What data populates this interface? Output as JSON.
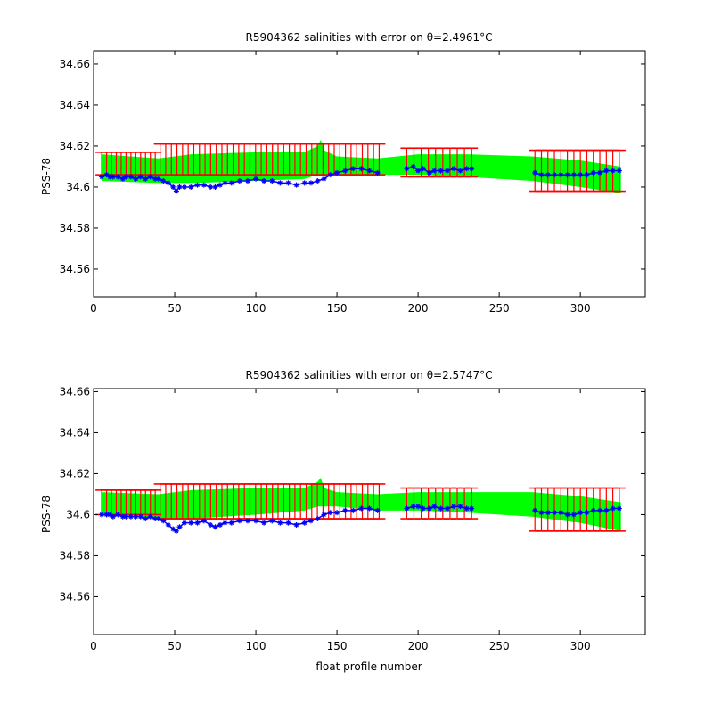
{
  "figure": {
    "xlabel": "float profile number"
  },
  "colors": {
    "mapped_band": "#00ff00",
    "error_bars": "#ff0000",
    "float_salinity": "#0000ff",
    "axes": "#000000"
  },
  "chart_data": [
    {
      "type": "line",
      "title": "R5904362 salinities with error on θ=2.4961°C",
      "ylabel": "PSS-78",
      "xlim": [
        0,
        340
      ],
      "ylim": [
        34.5465,
        34.6665
      ],
      "xticks": [
        "0",
        "50",
        "100",
        "150",
        "200",
        "250",
        "300"
      ],
      "yticks": [
        "34.56",
        "34.58",
        "34.6",
        "34.62",
        "34.64",
        "34.66"
      ],
      "bands": [
        {
          "x": [
            5,
            40,
            60,
            100,
            130,
            138,
            140,
            142,
            150,
            175,
            200,
            230,
            270,
            300,
            325
          ],
          "lower": [
            34.603,
            34.602,
            34.602,
            34.603,
            34.604,
            34.606,
            34.606,
            34.606,
            34.606,
            34.606,
            34.606,
            34.605,
            34.603,
            34.6,
            34.597
          ],
          "upper": [
            34.616,
            34.614,
            34.616,
            34.617,
            34.617,
            34.62,
            34.623,
            34.618,
            34.615,
            34.614,
            34.616,
            34.616,
            34.615,
            34.613,
            34.61
          ]
        }
      ],
      "series": [
        {
          "segments": [
            {
              "x": [
                5,
                8,
                10,
                12,
                15,
                18,
                20,
                23,
                26,
                29,
                32,
                35,
                38
              ],
              "y": [
                34.605,
                34.606,
                34.605,
                34.605,
                34.605,
                34.604,
                34.605,
                34.605,
                34.604,
                34.605,
                34.604,
                34.605,
                34.604
              ]
            },
            {
              "x": [
                40,
                43,
                46,
                49,
                51,
                53,
                56,
                60,
                64,
                68,
                72,
                75,
                78,
                81,
                85,
                90,
                95,
                100,
                105,
                110,
                115,
                120,
                125,
                130,
                134,
                138,
                142,
                146,
                150,
                155,
                160,
                165,
                170,
                175
              ],
              "y": [
                34.604,
                34.603,
                34.602,
                34.6,
                34.598,
                34.6,
                34.6,
                34.6,
                34.601,
                34.601,
                34.6,
                34.6,
                34.601,
                34.602,
                34.602,
                34.603,
                34.603,
                34.604,
                34.603,
                34.603,
                34.602,
                34.602,
                34.601,
                34.602,
                34.602,
                34.603,
                34.604,
                34.606,
                34.607,
                34.608,
                34.609,
                34.609,
                34.608,
                34.607
              ]
            },
            {
              "x": [
                193,
                197,
                200,
                203,
                207,
                210,
                214,
                218,
                222,
                226,
                230,
                233
              ],
              "y": [
                34.609,
                34.61,
                34.608,
                34.609,
                34.607,
                34.608,
                34.608,
                34.608,
                34.609,
                34.608,
                34.609,
                34.609
              ]
            },
            {
              "x": [
                272,
                276,
                280,
                284,
                288,
                292,
                296,
                300,
                304,
                308,
                312,
                316,
                320,
                324
              ],
              "y": [
                34.607,
                34.606,
                34.606,
                34.606,
                34.606,
                34.606,
                34.606,
                34.606,
                34.606,
                34.607,
                34.607,
                34.608,
                34.608,
                34.608
              ]
            }
          ]
        }
      ],
      "error_bars": [
        {
          "x_range": [
            5,
            38
          ],
          "count": 12,
          "low": 34.606,
          "high": 34.617
        },
        {
          "x_range": [
            41,
            176
          ],
          "count": 40,
          "low": 34.606,
          "high": 34.621
        },
        {
          "x_range": [
            193,
            233
          ],
          "count": 10,
          "low": 34.605,
          "high": 34.619
        },
        {
          "x_range": [
            272,
            324
          ],
          "count": 14,
          "low": 34.598,
          "high": 34.618
        }
      ]
    },
    {
      "type": "line",
      "title": "R5904362 salinities with error on θ=2.5747°C",
      "ylabel": "PSS-78",
      "xlim": [
        0,
        340
      ],
      "ylim": [
        34.5415,
        34.6615
      ],
      "xticks": [
        "0",
        "50",
        "100",
        "150",
        "200",
        "250",
        "300"
      ],
      "yticks": [
        "34.56",
        "34.58",
        "34.6",
        "34.62",
        "34.64",
        "34.66"
      ],
      "bands": [
        {
          "x": [
            5,
            40,
            60,
            100,
            130,
            138,
            140,
            142,
            150,
            175,
            200,
            230,
            270,
            300,
            325
          ],
          "lower": [
            34.6,
            34.598,
            34.598,
            34.6,
            34.602,
            34.604,
            34.604,
            34.604,
            34.604,
            34.602,
            34.602,
            34.601,
            34.599,
            34.596,
            34.592
          ],
          "upper": [
            34.611,
            34.61,
            34.612,
            34.613,
            34.613,
            34.616,
            34.618,
            34.613,
            34.611,
            34.61,
            34.611,
            34.611,
            34.611,
            34.609,
            34.606
          ]
        }
      ],
      "series": [
        {
          "segments": [
            {
              "x": [
                5,
                8,
                10,
                12,
                15,
                18,
                20,
                23,
                26,
                29,
                32,
                35,
                38
              ],
              "y": [
                34.6,
                34.6,
                34.6,
                34.599,
                34.6,
                34.599,
                34.599,
                34.599,
                34.599,
                34.599,
                34.598,
                34.599,
                34.598
              ]
            },
            {
              "x": [
                40,
                43,
                46,
                49,
                51,
                53,
                56,
                60,
                64,
                68,
                72,
                75,
                78,
                81,
                85,
                90,
                95,
                100,
                105,
                110,
                115,
                120,
                125,
                130,
                134,
                138,
                142,
                146,
                150,
                155,
                160,
                165,
                170,
                175
              ],
              "y": [
                34.598,
                34.597,
                34.595,
                34.593,
                34.592,
                34.594,
                34.596,
                34.596,
                34.596,
                34.597,
                34.595,
                34.594,
                34.595,
                34.596,
                34.596,
                34.597,
                34.597,
                34.597,
                34.596,
                34.597,
                34.596,
                34.596,
                34.595,
                34.596,
                34.597,
                34.598,
                34.6,
                34.601,
                34.601,
                34.602,
                34.602,
                34.603,
                34.603,
                34.602
              ]
            },
            {
              "x": [
                193,
                197,
                200,
                203,
                207,
                210,
                214,
                218,
                222,
                226,
                230,
                233
              ],
              "y": [
                34.603,
                34.604,
                34.604,
                34.603,
                34.603,
                34.604,
                34.603,
                34.603,
                34.604,
                34.604,
                34.603,
                34.603
              ]
            },
            {
              "x": [
                272,
                276,
                280,
                284,
                288,
                292,
                296,
                300,
                304,
                308,
                312,
                316,
                320,
                324
              ],
              "y": [
                34.602,
                34.601,
                34.601,
                34.601,
                34.601,
                34.6,
                34.6,
                34.601,
                34.601,
                34.602,
                34.602,
                34.602,
                34.603,
                34.603
              ]
            }
          ]
        }
      ],
      "error_bars": [
        {
          "x_range": [
            5,
            38
          ],
          "count": 12,
          "low": 34.6,
          "high": 34.612
        },
        {
          "x_range": [
            41,
            176
          ],
          "count": 40,
          "low": 34.598,
          "high": 34.615
        },
        {
          "x_range": [
            193,
            233
          ],
          "count": 10,
          "low": 34.598,
          "high": 34.613
        },
        {
          "x_range": [
            272,
            324
          ],
          "count": 14,
          "low": 34.592,
          "high": 34.613
        }
      ]
    }
  ]
}
